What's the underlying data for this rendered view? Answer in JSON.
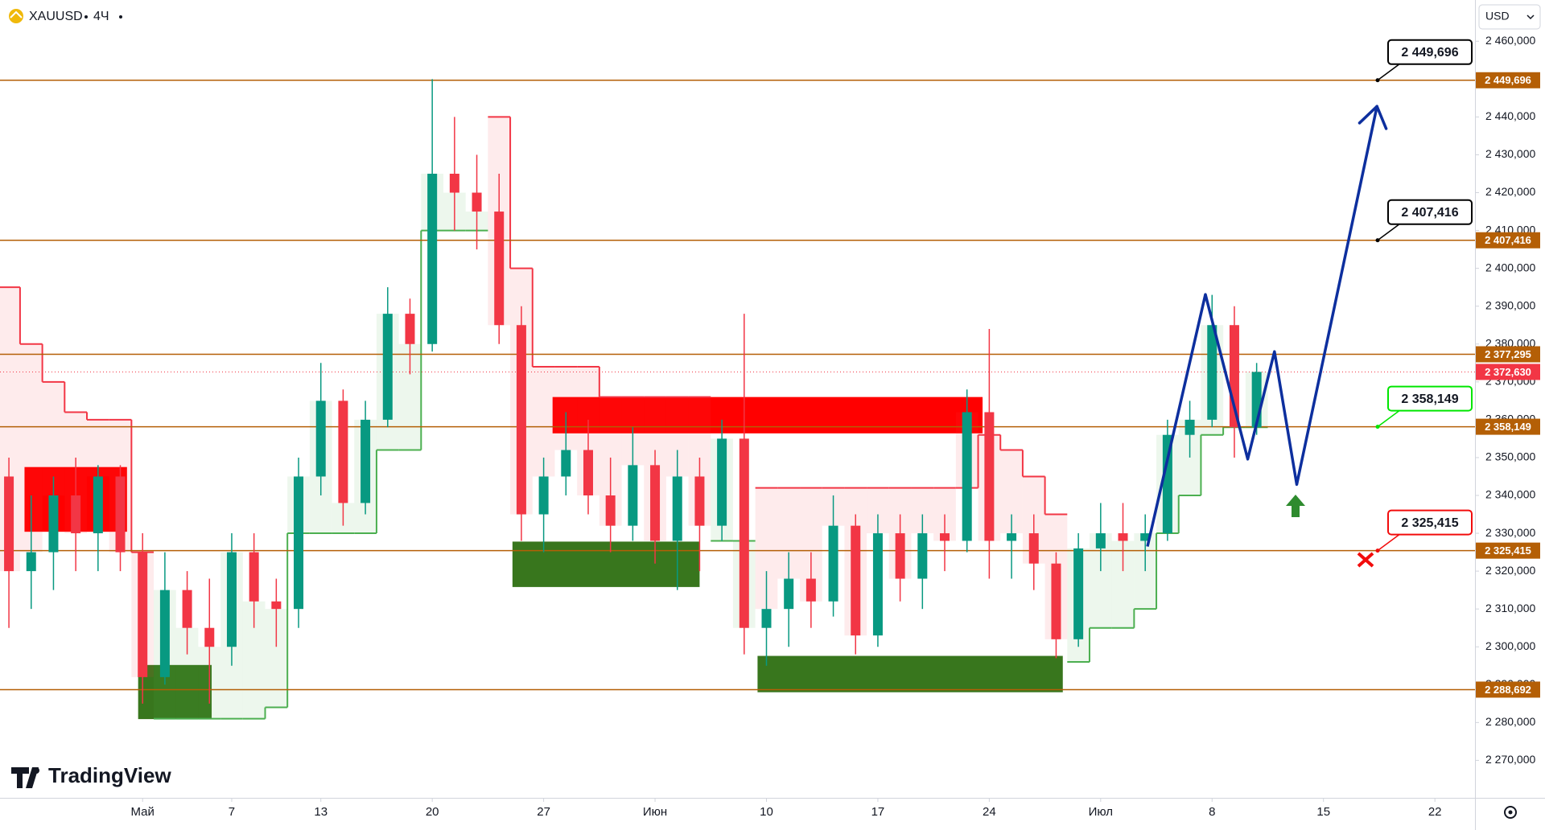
{
  "chart_data": {
    "type": "candlestick",
    "symbol": "XAUUSD",
    "interval": "4Ч",
    "currency": "USD",
    "logo": "TradingView",
    "xlim": [
      -6.4,
      59.8
    ],
    "ylim": [
      2260.1,
      2470.9
    ],
    "xticks": [
      {
        "value": 0,
        "label": "Май"
      },
      {
        "value": 4,
        "label": "7"
      },
      {
        "value": 8,
        "label": "13"
      },
      {
        "value": 13,
        "label": "20"
      },
      {
        "value": 18,
        "label": "27"
      },
      {
        "value": 23,
        "label": "Июн"
      },
      {
        "value": 28,
        "label": "10"
      },
      {
        "value": 33,
        "label": "17"
      },
      {
        "value": 38,
        "label": "24"
      },
      {
        "value": 43,
        "label": "Июл"
      },
      {
        "value": 48,
        "label": "8"
      },
      {
        "value": 53,
        "label": "15"
      },
      {
        "value": 58,
        "label": "22"
      }
    ],
    "yticks": [
      {
        "value": 2270,
        "label": "2 270,000"
      },
      {
        "value": 2280,
        "label": "2 280,000"
      },
      {
        "value": 2290,
        "label": "2 290,000"
      },
      {
        "value": 2300,
        "label": "2 300,000"
      },
      {
        "value": 2310,
        "label": "2 310,000"
      },
      {
        "value": 2320,
        "label": "2 320,000"
      },
      {
        "value": 2330,
        "label": "2 330,000"
      },
      {
        "value": 2340,
        "label": "2 340,000"
      },
      {
        "value": 2350,
        "label": "2 350,000"
      },
      {
        "value": 2360,
        "label": "2 360,000"
      },
      {
        "value": 2370,
        "label": "2 370,000"
      },
      {
        "value": 2380,
        "label": "2 380,000"
      },
      {
        "value": 2390,
        "label": "2 390,000"
      },
      {
        "value": 2400,
        "label": "2 400,000"
      },
      {
        "value": 2410,
        "label": "2 410,000"
      },
      {
        "value": 2420,
        "label": "2 420,000"
      },
      {
        "value": 2430,
        "label": "2 430,000"
      },
      {
        "value": 2440,
        "label": "2 440,000"
      },
      {
        "value": 2450,
        "label": "2 450,000"
      },
      {
        "value": 2460,
        "label": "2 460,000"
      }
    ],
    "up_color": "#089981",
    "down_color": "#f23645",
    "x": [
      -6,
      -5,
      -4,
      -3,
      -2,
      -1,
      0,
      1,
      2,
      3,
      4,
      5,
      6,
      7,
      8,
      9,
      10,
      11,
      12,
      13,
      14,
      15,
      16,
      17,
      18,
      19,
      20,
      21,
      22,
      23,
      24,
      25,
      26,
      27,
      28,
      29,
      30,
      31,
      32,
      33,
      34,
      35,
      36,
      37,
      38,
      39,
      40,
      41,
      42,
      43,
      44,
      45,
      46,
      47,
      48,
      49,
      50
    ],
    "open": [
      2345,
      2320,
      2325,
      2340,
      2330,
      2345,
      2325,
      2292,
      2315,
      2305,
      2300,
      2325,
      2312,
      2310,
      2345,
      2365,
      2338,
      2360,
      2388,
      2380,
      2425,
      2420,
      2415,
      2385,
      2335,
      2345,
      2352,
      2340,
      2332,
      2348,
      2328,
      2345,
      2332,
      2355,
      2305,
      2310,
      2318,
      2312,
      2332,
      2303,
      2330,
      2318,
      2330,
      2328,
      2362,
      2328,
      2330,
      2322,
      2302,
      2326,
      2330,
      2328,
      2330,
      2356,
      2360,
      2385,
      2358
    ],
    "high": [
      2350,
      2340,
      2345,
      2350,
      2348,
      2348,
      2330,
      2325,
      2320,
      2318,
      2330,
      2330,
      2318,
      2350,
      2375,
      2368,
      2365,
      2395,
      2392,
      2450,
      2440,
      2430,
      2425,
      2390,
      2350,
      2362,
      2360,
      2350,
      2358,
      2352,
      2352,
      2350,
      2360,
      2388,
      2320,
      2325,
      2325,
      2340,
      2335,
      2335,
      2335,
      2335,
      2335,
      2368,
      2384,
      2335,
      2335,
      2325,
      2330,
      2338,
      2338,
      2335,
      2360,
      2365,
      2393,
      2390,
      2375
    ],
    "low": [
      2305,
      2310,
      2315,
      2320,
      2320,
      2320,
      2285,
      2290,
      2298,
      2285,
      2295,
      2305,
      2300,
      2305,
      2340,
      2332,
      2335,
      2358,
      2372,
      2378,
      2410,
      2405,
      2380,
      2328,
      2325,
      2340,
      2335,
      2325,
      2328,
      2322,
      2315,
      2320,
      2328,
      2298,
      2295,
      2300,
      2305,
      2308,
      2298,
      2300,
      2312,
      2310,
      2320,
      2325,
      2318,
      2318,
      2315,
      2297,
      2300,
      2320,
      2320,
      2320,
      2328,
      2350,
      2358,
      2350,
      2356
    ],
    "close": [
      2320,
      2325,
      2340,
      2330,
      2345,
      2325,
      2292,
      2315,
      2305,
      2300,
      2325,
      2312,
      2310,
      2345,
      2365,
      2338,
      2360,
      2388,
      2380,
      2425,
      2420,
      2415,
      2385,
      2335,
      2345,
      2352,
      2340,
      2332,
      2348,
      2328,
      2345,
      2332,
      2355,
      2305,
      2310,
      2318,
      2312,
      2332,
      2303,
      2330,
      2318,
      2330,
      2328,
      2362,
      2328,
      2330,
      2322,
      2302,
      2326,
      2330,
      2328,
      2330,
      2356,
      2360,
      2385,
      2358,
      2372.63
    ],
    "trend": {
      "down": {
        "color": "#f23645",
        "fill": "rgba(242,54,69,0.1)",
        "values": [
          2395,
          2380,
          2370,
          2362,
          2360,
          2360,
          2325,
          null,
          null,
          null,
          null,
          null,
          null,
          null,
          null,
          null,
          null,
          null,
          null,
          null,
          null,
          null,
          2440,
          2400,
          2374,
          2374,
          2374,
          2366,
          2366,
          2366,
          2366,
          2366,
          null,
          null,
          2342,
          2342,
          2342,
          2342,
          2342,
          2342,
          2342,
          2342,
          2342,
          2342,
          2356,
          2352,
          2345,
          2335,
          null,
          null,
          null,
          null,
          null,
          null,
          null,
          null,
          null
        ]
      },
      "up": {
        "color": "#4caf50",
        "fill": "rgba(76,175,80,0.1)",
        "values": [
          null,
          null,
          null,
          null,
          null,
          null,
          null,
          2281,
          2281,
          2281,
          2281,
          2281,
          2284,
          2330,
          2330,
          2330,
          2330,
          2352,
          2352,
          2410,
          2410,
          2410,
          null,
          null,
          null,
          null,
          null,
          null,
          null,
          null,
          null,
          null,
          2328,
          2328,
          null,
          null,
          null,
          null,
          null,
          null,
          null,
          null,
          null,
          null,
          null,
          null,
          null,
          null,
          2296,
          2305,
          2305,
          2310,
          2330,
          2340,
          2356,
          2358,
          2358
        ]
      }
    },
    "zones": [
      {
        "x0": -5.3,
        "x1": -0.7,
        "y0": 2330.4,
        "y1": 2347.5,
        "color": "#ff0000"
      },
      {
        "x0": 18.4,
        "x1": 37.7,
        "y0": 2356.4,
        "y1": 2366,
        "color": "#ff0000"
      },
      {
        "x0": -0.2,
        "x1": 3.1,
        "y0": 2280.9,
        "y1": 2295.2,
        "color": "#38761d"
      },
      {
        "x0": 16.6,
        "x1": 25,
        "y0": 2315.8,
        "y1": 2327.8,
        "color": "#38761d"
      },
      {
        "x0": 27.6,
        "x1": 41.3,
        "y0": 2288,
        "y1": 2297.6,
        "color": "#38761d"
      }
    ],
    "level_color": "#b45f06",
    "levels": [
      {
        "value": 2449.696,
        "label": "2 449,696",
        "callout_color": "#000000"
      },
      {
        "value": 2407.416,
        "label": "2 407,416",
        "callout_color": "#000000"
      },
      {
        "value": 2377.295,
        "label": "2 377,295"
      },
      {
        "value": 2358.149,
        "label": "2 358,149",
        "callout_color": "#00e600"
      },
      {
        "value": 2325.415,
        "label": "2 325,415",
        "callout_color": "#f20c0c"
      },
      {
        "value": 2288.692,
        "label": "2 288,692"
      }
    ],
    "current_price": {
      "value": 2372.63,
      "label": "2 372,630",
      "color": "#f23645"
    },
    "projection": {
      "color": "#0d2f9e",
      "x": [
        45.1,
        47.7,
        49.6,
        50.8,
        51.8,
        55.4
      ],
      "values": [
        2326.5,
        2393.1,
        2349.6,
        2378,
        2342.9,
        2442.8
      ]
    }
  }
}
